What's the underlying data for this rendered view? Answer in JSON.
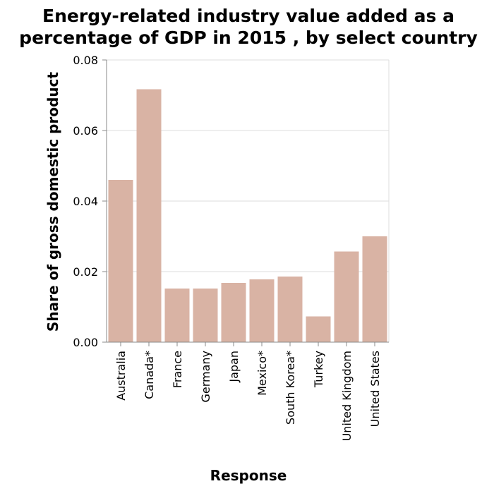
{
  "chart_data": {
    "type": "bar",
    "title_lines": [
      "Energy-related industry value added as a",
      "percentage of GDP in 2015 , by select country"
    ],
    "xlabel": "Response",
    "ylabel": "Share of gross domestic product",
    "categories": [
      "Australia",
      "Canada*",
      "France",
      "Germany",
      "Japan",
      "Mexico*",
      "South Korea*",
      "Turkey",
      "United Kingdom",
      "United States"
    ],
    "values": [
      0.046,
      0.0717,
      0.0152,
      0.0152,
      0.0168,
      0.0178,
      0.0186,
      0.0073,
      0.0257,
      0.03
    ],
    "ylim": [
      0,
      0.08
    ],
    "yticks": [
      "0.00",
      "0.02",
      "0.04",
      "0.06",
      "0.08"
    ],
    "ytick_values": [
      0,
      0.02,
      0.04,
      0.06,
      0.08
    ],
    "grid": true,
    "bar_color": "#d9b3a4"
  }
}
